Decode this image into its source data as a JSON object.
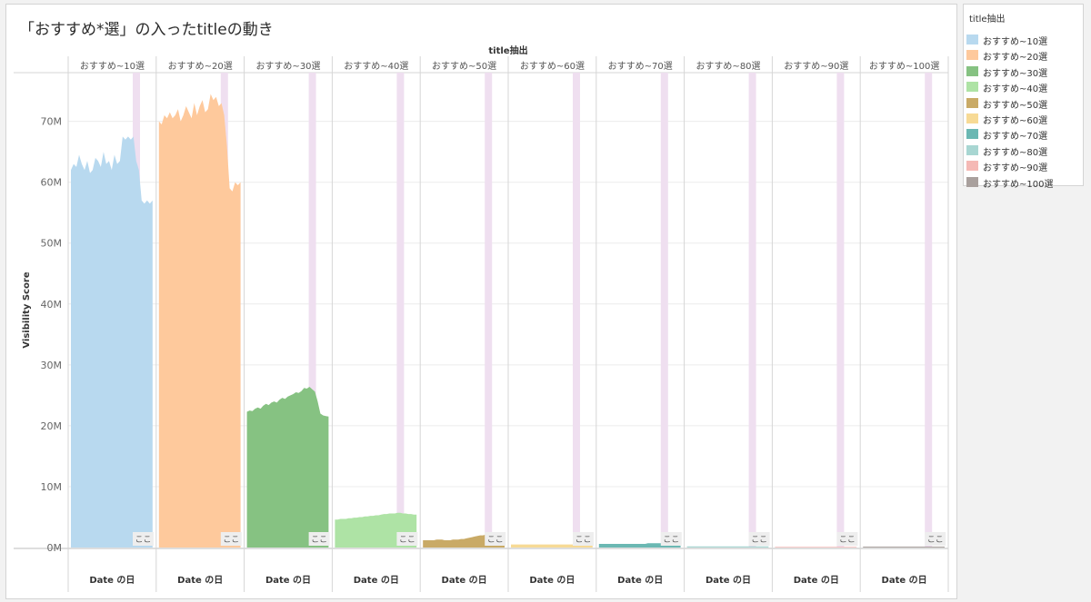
{
  "title": "「おすすめ*選」の入ったtitleの動き",
  "legend": {
    "title": "title抽出"
  },
  "colors": {
    "panel_background": "#ffffff",
    "gridline": "#ececec",
    "divider": "#d6d6d6",
    "highlight_band": "#efdff0"
  },
  "chart_data": {
    "type": "area",
    "facet_header": "title抽出",
    "ylabel": "Visibility Score",
    "xlabel": "Date の日",
    "ylim": [
      0,
      78000000
    ],
    "yticks": [
      {
        "label": "0M",
        "value": 0
      },
      {
        "label": "10M",
        "value": 10000000
      },
      {
        "label": "20M",
        "value": 20000000
      },
      {
        "label": "30M",
        "value": 30000000
      },
      {
        "label": "40M",
        "value": 40000000
      },
      {
        "label": "50M",
        "value": 50000000
      },
      {
        "label": "60M",
        "value": 60000000
      },
      {
        "label": "70M",
        "value": 70000000
      }
    ],
    "grid": true,
    "legend_position": "right",
    "highlight_label": "ここ",
    "series": [
      {
        "name": "おすすめ~10選",
        "color": "#b8d9ef",
        "values": [
          62.0,
          63.0,
          62.5,
          64.5,
          63.0,
          62.0,
          63.5,
          61.5,
          62.0,
          64.0,
          63.5,
          62.5,
          65.0,
          63.0,
          63.5,
          62.0,
          64.5,
          63.0,
          63.5,
          67.5,
          67.0,
          67.5,
          67.0,
          67.5,
          63.5,
          62.0,
          57.0,
          56.5,
          57.0,
          56.5,
          57.0
        ]
      },
      {
        "name": "おすすめ~20選",
        "color": "#fec99c",
        "values": [
          70.0,
          69.5,
          71.0,
          70.5,
          71.5,
          70.5,
          71.0,
          72.0,
          70.0,
          71.0,
          72.5,
          71.5,
          70.5,
          73.0,
          71.0,
          72.5,
          73.5,
          71.5,
          72.0,
          74.5,
          73.5,
          74.0,
          72.5,
          73.0,
          71.0,
          66.0,
          59.0,
          58.5,
          60.0,
          59.5,
          60.0
        ]
      },
      {
        "name": "おすすめ~30選",
        "color": "#86c282",
        "values": [
          22.3,
          22.5,
          22.4,
          22.8,
          23.0,
          22.8,
          23.3,
          23.6,
          23.4,
          23.8,
          24.0,
          23.8,
          24.3,
          24.6,
          24.4,
          24.8,
          25.0,
          25.2,
          25.5,
          25.4,
          25.7,
          26.2,
          26.1,
          26.4,
          26.0,
          25.6,
          24.0,
          22.0,
          21.7,
          21.6,
          21.5
        ]
      },
      {
        "name": "おすすめ~40選",
        "color": "#aee3a5",
        "values": [
          4.6,
          4.6,
          4.7,
          4.7,
          4.7,
          4.8,
          4.8,
          4.9,
          4.9,
          5.0,
          5.0,
          5.1,
          5.1,
          5.2,
          5.2,
          5.3,
          5.3,
          5.4,
          5.5,
          5.5,
          5.6,
          5.6,
          5.6,
          5.7,
          5.7,
          5.6,
          5.6,
          5.5,
          5.5,
          5.4,
          5.4
        ]
      },
      {
        "name": "おすすめ~50選",
        "color": "#c9aa66",
        "values": [
          1.2,
          1.2,
          1.2,
          1.2,
          1.2,
          1.3,
          1.3,
          1.3,
          1.2,
          1.2,
          1.2,
          1.3,
          1.3,
          1.3,
          1.4,
          1.4,
          1.5,
          1.6,
          1.7,
          1.8,
          1.9,
          2.0,
          2.0,
          2.1,
          2.1,
          2.1,
          2.0,
          2.0,
          2.0,
          2.0,
          2.0
        ]
      },
      {
        "name": "おすすめ~60選",
        "color": "#f7da95",
        "values": [
          0.5,
          0.5,
          0.5,
          0.5,
          0.5,
          0.5,
          0.5,
          0.5,
          0.5,
          0.5,
          0.5,
          0.5,
          0.5,
          0.5,
          0.5,
          0.5,
          0.5,
          0.5,
          0.5,
          0.5,
          0.5,
          0.5,
          0.5,
          0.5,
          0.5,
          0.5,
          0.5,
          0.5,
          0.5,
          0.5,
          0.5
        ]
      },
      {
        "name": "おすすめ~70選",
        "color": "#6bb8b3",
        "values": [
          0.6,
          0.6,
          0.6,
          0.6,
          0.6,
          0.6,
          0.6,
          0.6,
          0.6,
          0.6,
          0.6,
          0.6,
          0.6,
          0.6,
          0.6,
          0.6,
          0.6,
          0.6,
          0.7,
          0.7,
          0.7,
          0.7,
          0.7,
          0.7,
          0.7,
          0.7,
          0.7,
          0.7,
          0.7,
          0.7,
          0.7
        ]
      },
      {
        "name": "おすすめ~80選",
        "color": "#a8d6d2",
        "values": [
          0.2,
          0.2,
          0.2,
          0.2,
          0.2,
          0.2,
          0.2,
          0.2,
          0.2,
          0.2,
          0.2,
          0.2,
          0.2,
          0.2,
          0.2,
          0.2,
          0.2,
          0.2,
          0.2,
          0.2,
          0.2,
          0.2,
          0.2,
          0.2,
          0.2,
          0.2,
          0.2,
          0.2,
          0.2,
          0.2,
          0.2
        ]
      },
      {
        "name": "おすすめ~90選",
        "color": "#f5b9b5",
        "values": [
          0.1,
          0.1,
          0.1,
          0.1,
          0.1,
          0.1,
          0.1,
          0.1,
          0.1,
          0.1,
          0.1,
          0.1,
          0.1,
          0.1,
          0.1,
          0.1,
          0.1,
          0.1,
          0.1,
          0.1,
          0.1,
          0.1,
          0.1,
          0.1,
          0.1,
          0.1,
          0.1,
          0.1,
          0.1,
          0.1,
          0.1
        ]
      },
      {
        "name": "おすすめ~100選",
        "color": "#a9a09d",
        "values": [
          0.15,
          0.15,
          0.15,
          0.15,
          0.15,
          0.15,
          0.15,
          0.15,
          0.15,
          0.15,
          0.15,
          0.15,
          0.15,
          0.15,
          0.15,
          0.15,
          0.15,
          0.15,
          0.15,
          0.15,
          0.15,
          0.15,
          0.15,
          0.15,
          0.15,
          0.15,
          0.15,
          0.15,
          0.15,
          0.15,
          0.15
        ]
      }
    ]
  }
}
